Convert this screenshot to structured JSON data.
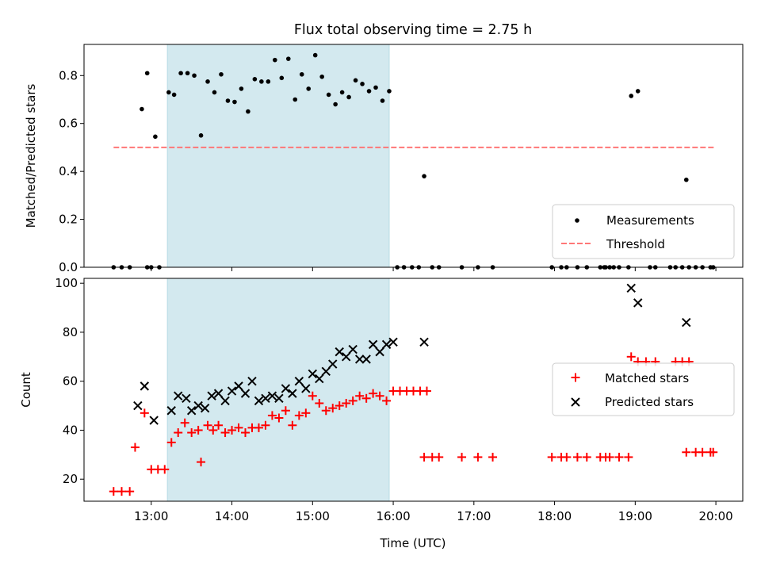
{
  "chart_data": {
    "title": "Flux total observing time = 2.75 h",
    "xlabel": "Time (UTC)",
    "xlim": [
      "12:10",
      "20:20"
    ],
    "x_ticks": [
      "13:00",
      "14:00",
      "15:00",
      "16:00",
      "17:00",
      "18:00",
      "19:00",
      "20:00"
    ],
    "highlight_span": {
      "start": "13:12",
      "end": "15:57",
      "color": "#d3e9ef"
    },
    "panels": [
      {
        "type": "scatter",
        "ylabel": "Matched/Predicted stars",
        "ylim": [
          0,
          0.93
        ],
        "y_ticks": [
          "0.0",
          "0.2",
          "0.4",
          "0.6",
          "0.8"
        ],
        "grid": false,
        "legend_position": "lower-right",
        "threshold": {
          "name": "Threshold",
          "value": 0.5,
          "x_start": "12:32",
          "x_end": "19:59",
          "color": "#ff7777"
        },
        "series": [
          {
            "name": "Measurements",
            "marker": "dot",
            "color": "#000000",
            "points": [
              [
                "12:32",
                0
              ],
              [
                "12:38",
                0
              ],
              [
                "12:44",
                0
              ],
              [
                "12:53",
                0.66
              ],
              [
                "12:57",
                0.81
              ],
              [
                "12:57",
                0
              ],
              [
                "13:03",
                0.545
              ],
              [
                "13:00",
                0
              ],
              [
                "13:06",
                0
              ],
              [
                "13:13",
                0.73
              ],
              [
                "13:17",
                0.72
              ],
              [
                "13:22",
                0.81
              ],
              [
                "13:27",
                0.81
              ],
              [
                "13:32",
                0.8
              ],
              [
                "13:37",
                0.55
              ],
              [
                "13:42",
                0.775
              ],
              [
                "13:47",
                0.73
              ],
              [
                "13:52",
                0.805
              ],
              [
                "13:57",
                0.695
              ],
              [
                "14:02",
                0.69
              ],
              [
                "14:07",
                0.745
              ],
              [
                "14:12",
                0.65
              ],
              [
                "14:17",
                0.785
              ],
              [
                "14:22",
                0.775
              ],
              [
                "14:27",
                0.775
              ],
              [
                "14:32",
                0.865
              ],
              [
                "14:37",
                0.79
              ],
              [
                "14:42",
                0.87
              ],
              [
                "14:47",
                0.7
              ],
              [
                "14:52",
                0.805
              ],
              [
                "14:57",
                0.745
              ],
              [
                "15:02",
                0.885
              ],
              [
                "15:07",
                0.795
              ],
              [
                "15:12",
                0.72
              ],
              [
                "15:17",
                0.68
              ],
              [
                "15:22",
                0.73
              ],
              [
                "15:27",
                0.71
              ],
              [
                "15:32",
                0.78
              ],
              [
                "15:37",
                0.765
              ],
              [
                "15:42",
                0.735
              ],
              [
                "15:47",
                0.75
              ],
              [
                "15:52",
                0.695
              ],
              [
                "15:57",
                0.735
              ],
              [
                "16:03",
                0
              ],
              [
                "16:08",
                0
              ],
              [
                "16:14",
                0
              ],
              [
                "16:19",
                0
              ],
              [
                "16:23",
                0.38
              ],
              [
                "16:29",
                0
              ],
              [
                "16:34",
                0
              ],
              [
                "16:51",
                0
              ],
              [
                "17:03",
                0
              ],
              [
                "17:14",
                0
              ],
              [
                "17:58",
                0
              ],
              [
                "18:05",
                0
              ],
              [
                "18:09",
                0
              ],
              [
                "18:17",
                0
              ],
              [
                "18:24",
                0
              ],
              [
                "18:38",
                0
              ],
              [
                "18:34",
                0
              ],
              [
                "18:37",
                0
              ],
              [
                "18:41",
                0
              ],
              [
                "18:44",
                0
              ],
              [
                "18:48",
                0
              ],
              [
                "18:55",
                0
              ],
              [
                "18:57",
                0.715
              ],
              [
                "19:02",
                0.735
              ],
              [
                "19:11",
                0
              ],
              [
                "19:15",
                0
              ],
              [
                "19:26",
                0
              ],
              [
                "19:30",
                0
              ],
              [
                "19:35",
                0
              ],
              [
                "19:40",
                0
              ],
              [
                "19:38",
                0.365
              ],
              [
                "19:45",
                0
              ],
              [
                "19:50",
                0
              ],
              [
                "19:56",
                0
              ],
              [
                "19:58",
                0
              ]
            ]
          }
        ]
      },
      {
        "type": "scatter",
        "ylabel": "Count",
        "ylim": [
          11,
          102
        ],
        "y_ticks": [
          "20",
          "40",
          "60",
          "80",
          "100"
        ],
        "grid": false,
        "legend_position": "center-right",
        "series": [
          {
            "name": "Matched stars",
            "marker": "plus",
            "color": "#ff0000",
            "points": [
              [
                "12:32",
                15
              ],
              [
                "12:38",
                15
              ],
              [
                "12:44",
                15
              ],
              [
                "12:48",
                33
              ],
              [
                "12:55",
                47
              ],
              [
                "13:00",
                24
              ],
              [
                "13:05",
                24
              ],
              [
                "13:10",
                24
              ],
              [
                "13:15",
                35
              ],
              [
                "13:20",
                39
              ],
              [
                "13:25",
                43
              ],
              [
                "13:30",
                39
              ],
              [
                "13:35",
                40
              ],
              [
                "13:37",
                27
              ],
              [
                "13:42",
                42
              ],
              [
                "13:46",
                40
              ],
              [
                "13:50",
                42
              ],
              [
                "13:55",
                39
              ],
              [
                "14:00",
                40
              ],
              [
                "14:05",
                41
              ],
              [
                "14:10",
                39
              ],
              [
                "14:15",
                41
              ],
              [
                "14:20",
                41
              ],
              [
                "14:25",
                42
              ],
              [
                "14:30",
                46
              ],
              [
                "14:35",
                45
              ],
              [
                "14:40",
                48
              ],
              [
                "14:45",
                42
              ],
              [
                "14:50",
                46
              ],
              [
                "14:55",
                47
              ],
              [
                "15:00",
                54
              ],
              [
                "15:05",
                51
              ],
              [
                "15:10",
                48
              ],
              [
                "15:15",
                49
              ],
              [
                "15:20",
                50
              ],
              [
                "15:25",
                51
              ],
              [
                "15:30",
                52
              ],
              [
                "15:35",
                54
              ],
              [
                "15:40",
                53
              ],
              [
                "15:45",
                55
              ],
              [
                "15:50",
                54
              ],
              [
                "15:55",
                52
              ],
              [
                "16:00",
                56
              ],
              [
                "16:05",
                56
              ],
              [
                "16:10",
                56
              ],
              [
                "16:15",
                56
              ],
              [
                "16:20",
                56
              ],
              [
                "16:25",
                56
              ],
              [
                "16:23",
                29
              ],
              [
                "16:29",
                29
              ],
              [
                "16:34",
                29
              ],
              [
                "16:51",
                29
              ],
              [
                "17:03",
                29
              ],
              [
                "17:14",
                29
              ],
              [
                "17:58",
                29
              ],
              [
                "18:05",
                29
              ],
              [
                "18:09",
                29
              ],
              [
                "18:17",
                29
              ],
              [
                "18:24",
                29
              ],
              [
                "18:38",
                29
              ],
              [
                "18:34",
                29
              ],
              [
                "18:41",
                29
              ],
              [
                "18:48",
                29
              ],
              [
                "18:55",
                29
              ],
              [
                "18:57",
                70
              ],
              [
                "19:02",
                68
              ],
              [
                "19:08",
                68
              ],
              [
                "19:15",
                68
              ],
              [
                "19:30",
                68
              ],
              [
                "19:35",
                68
              ],
              [
                "19:40",
                68
              ],
              [
                "19:38",
                31
              ],
              [
                "19:45",
                31
              ],
              [
                "19:50",
                31
              ],
              [
                "19:56",
                31
              ],
              [
                "19:58",
                31
              ]
            ]
          },
          {
            "name": "Predicted stars",
            "marker": "x",
            "color": "#000000",
            "points": [
              [
                "12:50",
                50
              ],
              [
                "12:55",
                58
              ],
              [
                "13:02",
                44
              ],
              [
                "13:15",
                48
              ],
              [
                "13:20",
                54
              ],
              [
                "13:26",
                53
              ],
              [
                "13:30",
                48
              ],
              [
                "13:35",
                50
              ],
              [
                "13:40",
                49
              ],
              [
                "13:45",
                54
              ],
              [
                "13:50",
                55
              ],
              [
                "13:55",
                52
              ],
              [
                "14:00",
                56
              ],
              [
                "14:05",
                58
              ],
              [
                "14:10",
                55
              ],
              [
                "14:15",
                60
              ],
              [
                "14:20",
                52
              ],
              [
                "14:25",
                53
              ],
              [
                "14:30",
                54
              ],
              [
                "14:35",
                53
              ],
              [
                "14:40",
                57
              ],
              [
                "14:45",
                55
              ],
              [
                "14:50",
                60
              ],
              [
                "14:55",
                57
              ],
              [
                "15:00",
                63
              ],
              [
                "15:05",
                61
              ],
              [
                "15:10",
                64
              ],
              [
                "15:15",
                67
              ],
              [
                "15:20",
                72
              ],
              [
                "15:25",
                70
              ],
              [
                "15:30",
                73
              ],
              [
                "15:35",
                69
              ],
              [
                "15:40",
                69
              ],
              [
                "15:45",
                75
              ],
              [
                "15:50",
                72
              ],
              [
                "15:55",
                75
              ],
              [
                "16:00",
                76
              ],
              [
                "16:23",
                76
              ],
              [
                "18:57",
                98
              ],
              [
                "19:02",
                92
              ],
              [
                "19:38",
                84
              ]
            ]
          }
        ]
      }
    ]
  }
}
